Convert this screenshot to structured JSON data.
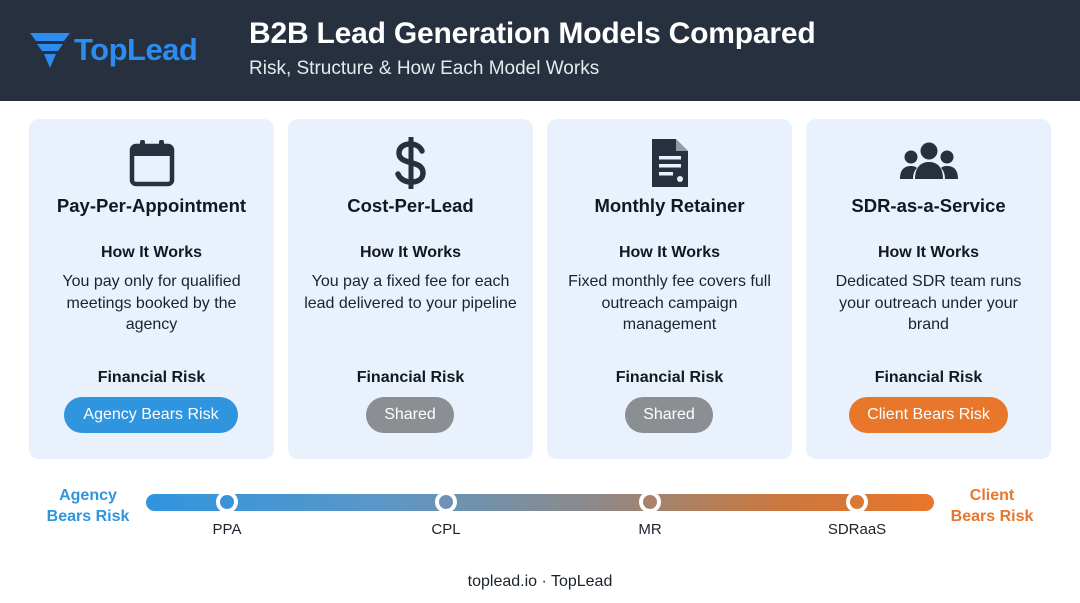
{
  "header": {
    "logo_text": "TopLead",
    "title": "B2B Lead Generation Models Compared",
    "subtitle": "Risk, Structure & How Each Model Works"
  },
  "colors": {
    "header_bg": "#26303f",
    "card_bg": "#e9f1fc",
    "agency_blue": "#2f95df",
    "shared_gray": "#8b8e93",
    "client_orange": "#e8762b"
  },
  "cards": [
    {
      "icon": "calendar-icon",
      "name": "Pay-Per-Appointment",
      "how_heading": "How It Works",
      "how_text": "You pay only for qualified meetings booked by the agency",
      "risk_heading": "Financial Risk",
      "risk_label": "Agency Bears Risk",
      "risk_color": "#2f95df"
    },
    {
      "icon": "dollar-icon",
      "name": "Cost-Per-Lead",
      "how_heading": "How It Works",
      "how_text": "You pay a fixed fee for each lead delivered to your pipeline",
      "risk_heading": "Financial Risk",
      "risk_label": "Shared",
      "risk_color": "#8b8e93"
    },
    {
      "icon": "document-icon",
      "name": "Monthly Retainer",
      "how_heading": "How It Works",
      "how_text": "Fixed monthly fee covers full outreach campaign management",
      "risk_heading": "Financial Risk",
      "risk_label": "Shared",
      "risk_color": "#8b8e93"
    },
    {
      "icon": "team-icon",
      "name": "SDR-as-a-Service",
      "how_heading": "How It Works",
      "how_text": "Dedicated SDR team runs your outreach under your brand",
      "risk_heading": "Financial Risk",
      "risk_label": "Client Bears Risk",
      "risk_color": "#e8762b"
    }
  ],
  "scale": {
    "left_label_line1": "Agency",
    "left_label_line2": "Bears Risk",
    "right_label_line1": "Client",
    "right_label_line2": "Bears Risk",
    "nodes": [
      {
        "label": "PPA"
      },
      {
        "label": "CPL"
      },
      {
        "label": "MR"
      },
      {
        "label": "SDRaaS"
      }
    ]
  },
  "footer": {
    "text": "toplead.io · TopLead"
  }
}
